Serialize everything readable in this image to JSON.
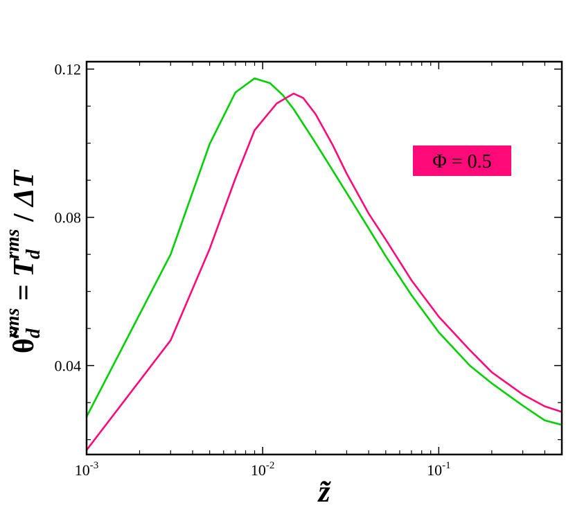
{
  "chart_data": {
    "type": "line",
    "title": "",
    "x_scale": "log",
    "xlim": [
      0.001,
      0.5
    ],
    "ylim": [
      0.016,
      0.122
    ],
    "grid": false,
    "x_ticks": [
      {
        "value": 0.001,
        "base": "10",
        "exp": "-3"
      },
      {
        "value": 0.01,
        "base": "10",
        "exp": "-2"
      },
      {
        "value": 0.1,
        "base": "10",
        "exp": "-1"
      }
    ],
    "y_ticks": [
      {
        "value": 0.04,
        "label": "0.04"
      },
      {
        "value": 0.08,
        "label": "0.08"
      },
      {
        "value": 0.12,
        "label": "0.12"
      }
    ],
    "xlabel": "z̃",
    "ylabel": {
      "symbol": "θ̃",
      "symbol_sub": "d",
      "symbol_sup": "rms",
      "equals": " = ",
      "var": "T",
      "var_sub": "d",
      "var_sup": "rms",
      "divider": " / ",
      "denominator": "ΔT"
    },
    "annotation": {
      "text": "Φ = 0.5",
      "background": "#ff0a78"
    },
    "series": [
      {
        "color": "#00d000",
        "x": [
          0.001,
          0.003,
          0.005,
          0.007,
          0.009,
          0.011,
          0.013,
          0.015,
          0.02,
          0.03,
          0.04,
          0.05,
          0.07,
          0.1,
          0.15,
          0.2,
          0.3,
          0.4,
          0.5
        ],
        "y": [
          0.0262,
          0.07,
          0.0998,
          0.1137,
          0.1175,
          0.1162,
          0.113,
          0.1092,
          0.1,
          0.0866,
          0.077,
          0.0695,
          0.059,
          0.049,
          0.04,
          0.0352,
          0.0292,
          0.0252,
          0.024
        ]
      },
      {
        "color": "#ff0a78",
        "x": [
          0.001,
          0.003,
          0.005,
          0.007,
          0.009,
          0.012,
          0.015,
          0.017,
          0.02,
          0.025,
          0.03,
          0.04,
          0.05,
          0.07,
          0.1,
          0.15,
          0.2,
          0.3,
          0.4,
          0.5
        ],
        "y": [
          0.0172,
          0.0468,
          0.0715,
          0.0905,
          0.1035,
          0.1107,
          0.1134,
          0.1122,
          0.1078,
          0.0995,
          0.0918,
          0.081,
          0.074,
          0.063,
          0.0532,
          0.0442,
          0.0382,
          0.0322,
          0.029,
          0.0275
        ]
      }
    ]
  }
}
